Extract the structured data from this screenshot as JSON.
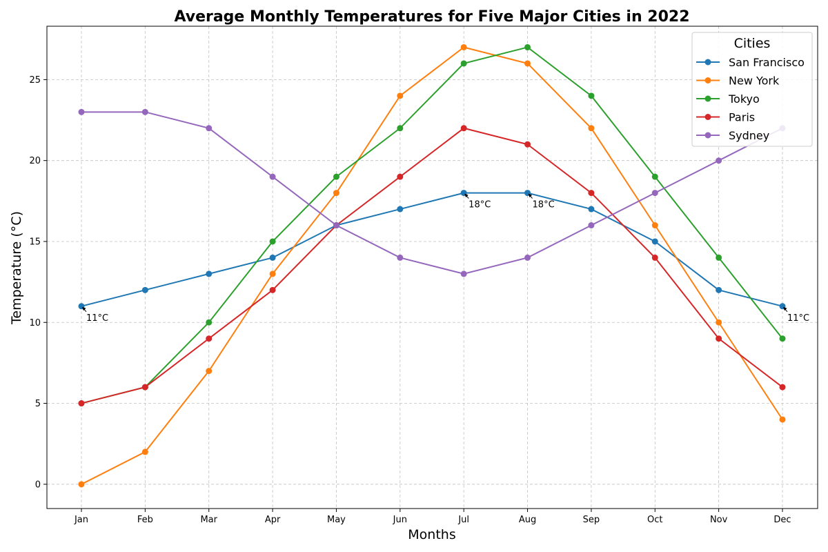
{
  "chart_data": {
    "type": "line",
    "title": "Average Monthly Temperatures for Five Major Cities in 2022",
    "xlabel": "Months",
    "ylabel": "Temperature (°C)",
    "categories": [
      "Jan",
      "Feb",
      "Mar",
      "Apr",
      "May",
      "Jun",
      "Jul",
      "Aug",
      "Sep",
      "Oct",
      "Nov",
      "Dec"
    ],
    "ylim": [
      -1.5,
      28.3
    ],
    "yticks": [
      0,
      5,
      10,
      15,
      20,
      25
    ],
    "grid": true,
    "legend": {
      "title": "Cities",
      "placement": "top-right"
    },
    "series": [
      {
        "name": "San Francisco",
        "color": "#1f77b4",
        "values": [
          11,
          12,
          13,
          14,
          16,
          17,
          18,
          18,
          17,
          15,
          12,
          11
        ]
      },
      {
        "name": "New York",
        "color": "#ff7f0e",
        "values": [
          0,
          2,
          7,
          13,
          18,
          24,
          27,
          26,
          22,
          16,
          10,
          4
        ]
      },
      {
        "name": "Tokyo",
        "color": "#2ca02c",
        "values": [
          5,
          6,
          10,
          15,
          19,
          22,
          26,
          27,
          24,
          19,
          14,
          9
        ]
      },
      {
        "name": "Paris",
        "color": "#d62728",
        "values": [
          5,
          6,
          9,
          12,
          16,
          19,
          22,
          21,
          18,
          14,
          9,
          6
        ]
      },
      {
        "name": "Sydney",
        "color": "#9467bd",
        "values": [
          23,
          23,
          22,
          19,
          16,
          14,
          13,
          14,
          16,
          18,
          20,
          22
        ]
      }
    ],
    "annotations": [
      {
        "category": "Jan",
        "value": 11,
        "text": "11°C"
      },
      {
        "category": "Jul",
        "value": 18,
        "text": "18°C"
      },
      {
        "category": "Aug",
        "value": 18,
        "text": "18°C"
      },
      {
        "category": "Dec",
        "value": 11,
        "text": "11°C"
      }
    ]
  }
}
